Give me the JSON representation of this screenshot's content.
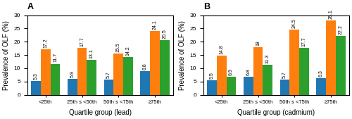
{
  "chart_data": [
    {
      "type": "bar",
      "title": "A",
      "x_label": "Quartile group (lead)",
      "y_label": "Prevalence of OLF (%)",
      "categories": [
        "<25th",
        "25th s <50th",
        "50th s <75th",
        "≥75th"
      ],
      "series": [
        {
          "values": [
            5.3,
            5.9,
            5.7,
            8.8
          ]
        },
        {
          "values": [
            17.2,
            17.7,
            15.5,
            24.1
          ]
        },
        {
          "values": [
            11.7,
            13.1,
            14.2,
            20.5
          ]
        }
      ],
      "ylim": [
        0,
        30
      ],
      "yticks": [
        0,
        5,
        10,
        15,
        20,
        25,
        30
      ],
      "data_labels": true
    },
    {
      "type": "bar",
      "title": "B",
      "x_label": "Quartile group (cadmium)",
      "y_label": "Prevalence of OLF (%)",
      "categories": [
        "<25th",
        "25th s <50th",
        "50th s <75th",
        "≥75th"
      ],
      "series": [
        {
          "values": [
            5.5,
            6.8,
            5.7,
            6.3
          ]
        },
        {
          "values": [
            14.8,
            18,
            24.5,
            28.1
          ]
        },
        {
          "values": [
            6.9,
            11.3,
            17.7,
            22.2
          ]
        }
      ],
      "ylim": [
        0,
        30
      ],
      "yticks": [
        0,
        5,
        10,
        15,
        20,
        25,
        30
      ],
      "data_labels": true
    }
  ]
}
